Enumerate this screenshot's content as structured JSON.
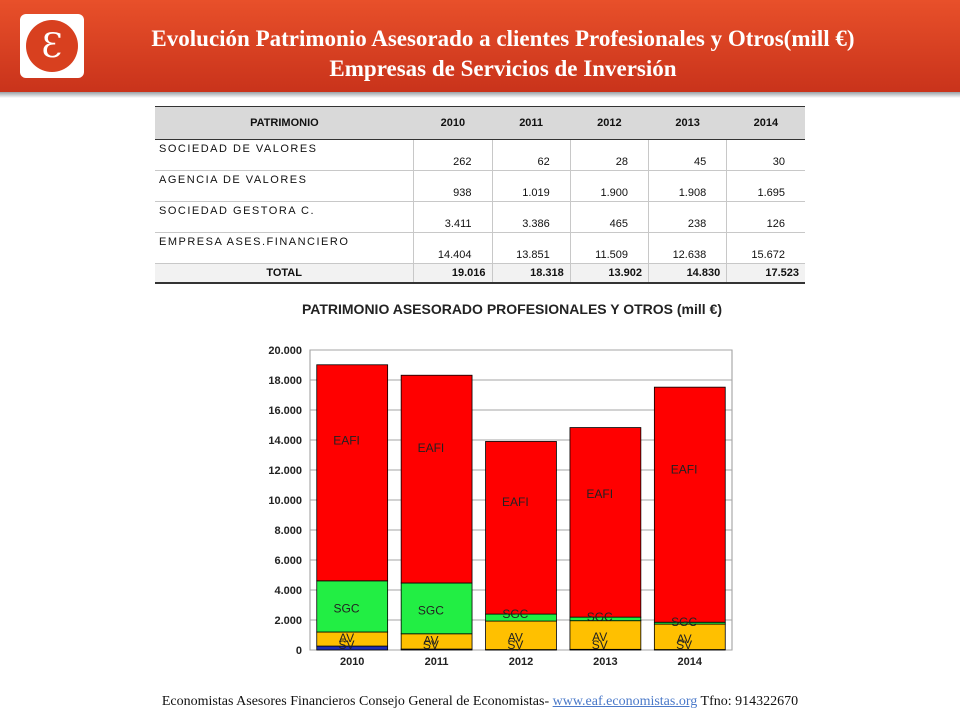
{
  "header": {
    "logo_glyph": "Ɛ",
    "title_line1": "Evolución Patrimonio Asesorado a clientes Profesionales y Otros(mill €)",
    "title_line2": "Empresas de Servicios de Inversión",
    "color": "#d8401f"
  },
  "table": {
    "headers": [
      "PATRIMONIO",
      "2010",
      "2011",
      "2012",
      "2013",
      "2014"
    ],
    "rows": [
      {
        "label": "SOCIEDAD DE VALORES",
        "values": [
          "262",
          "62",
          "28",
          "45",
          "30"
        ]
      },
      {
        "label": "AGENCIA DE VALORES",
        "values": [
          "938",
          "1.019",
          "1.900",
          "1.908",
          "1.695"
        ]
      },
      {
        "label": "SOCIEDAD GESTORA C.",
        "values": [
          "3.411",
          "3.386",
          "465",
          "238",
          "126"
        ]
      },
      {
        "label": "EMPRESA ASES.FINANCIERO",
        "values": [
          "14.404",
          "13.851",
          "11.509",
          "12.638",
          "15.672"
        ]
      }
    ],
    "total": {
      "label": "TOTAL",
      "values": [
        "19.016",
        "18.318",
        "13.902",
        "14.830",
        "17.523"
      ]
    }
  },
  "chart_data": {
    "type": "bar",
    "stacked": true,
    "title": "PATRIMONIO ASESORADO PROFESIONALES Y OTROS (mill €)",
    "categories": [
      "2010",
      "2011",
      "2012",
      "2013",
      "2014"
    ],
    "series": [
      {
        "name": "SV",
        "color": "#1f2db3",
        "values": [
          262,
          62,
          28,
          45,
          30
        ]
      },
      {
        "name": "AV",
        "color": "#ffc000",
        "values": [
          938,
          1019,
          1900,
          1908,
          1695
        ]
      },
      {
        "name": "SGC",
        "color": "#22ee44",
        "values": [
          3411,
          3386,
          465,
          238,
          126
        ]
      },
      {
        "name": "EAFI",
        "color": "#ff0000",
        "values": [
          14404,
          13851,
          11509,
          12638,
          15672
        ]
      }
    ],
    "ylim": [
      0,
      20000
    ],
    "yticks": [
      "0",
      "2.000",
      "4.000",
      "6.000",
      "8.000",
      "10.000",
      "12.000",
      "14.000",
      "16.000",
      "18.000",
      "20.000"
    ],
    "grid": true,
    "legend": "none"
  },
  "footer": {
    "text_before": "Economistas Asesores Financieros Consejo General de Economistas- ",
    "link_text": "www.eaf.economistas.org",
    "text_after": " Tfno: 914322670"
  }
}
